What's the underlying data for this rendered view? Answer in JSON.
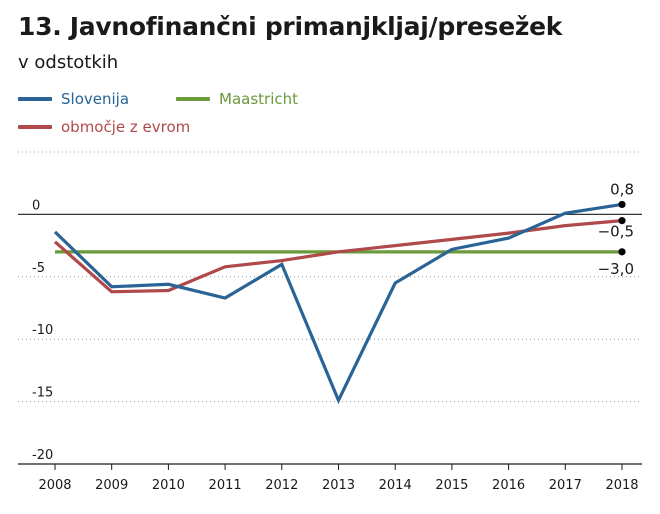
{
  "chart_data": {
    "type": "line",
    "title": "13. Javnofinančni primanjkljaj/presežek",
    "subtitle": "v odstotkih",
    "categories": [
      "2008",
      "2009",
      "2010",
      "2011",
      "2012",
      "2013",
      "2014",
      "2015",
      "2016",
      "2017",
      "2018"
    ],
    "yticks": [
      "0",
      "-5",
      "-10",
      "-15",
      "-20"
    ],
    "ylim": [
      -20,
      5
    ],
    "grid": true,
    "legend_position": "top-left",
    "series": [
      {
        "name": "Slovenija",
        "color": "#2a6496",
        "values": [
          -1.4,
          -5.8,
          -5.6,
          -6.7,
          -4.0,
          -14.9,
          -5.5,
          -2.8,
          -1.9,
          0.1,
          0.8
        ],
        "end_label": "0,8"
      },
      {
        "name": "Maastricht",
        "color": "#6a9a3a",
        "values": [
          -3.0,
          -3.0,
          -3.0,
          -3.0,
          -3.0,
          -3.0,
          -3.0,
          -3.0,
          -3.0,
          -3.0,
          -3.0
        ],
        "end_label": "−3,0"
      },
      {
        "name": "območje z evrom",
        "color": "#b04a4a",
        "values": [
          -2.2,
          -6.2,
          -6.1,
          -4.2,
          -3.7,
          -3.0,
          -2.5,
          -2.0,
          -1.5,
          -0.9,
          -0.5
        ],
        "end_label": "−0,5"
      }
    ]
  }
}
